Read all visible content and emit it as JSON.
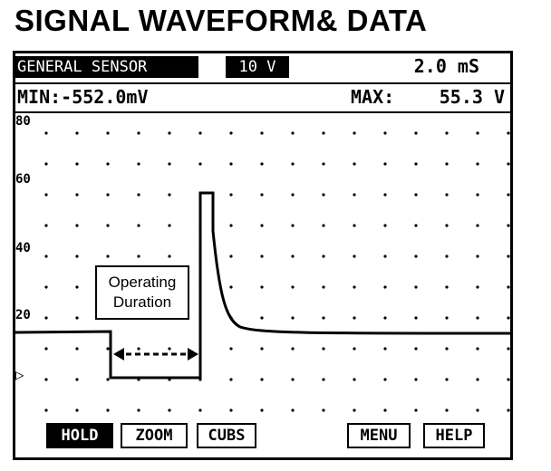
{
  "title": "SIGNAL WAVEFORM& DATA",
  "header": {
    "mode_label": "GENERAL SENSOR",
    "channel_label": "10 V",
    "time_label": "2.0 mS"
  },
  "measurements": {
    "min_label": "MIN:-552.0mV",
    "max_label": "MAX:",
    "max_value": "55.3 V"
  },
  "y_axis": {
    "tick_labels": [
      "80",
      "60",
      "40",
      "20"
    ],
    "zero_marker": "▷"
  },
  "annotation": {
    "line1": "Operating",
    "line2": "Duration"
  },
  "buttons": {
    "hold": "HOLD",
    "zoom": "ZOOM",
    "cubs": "CUBS",
    "menu": "MENU",
    "help": "HELP"
  }
}
